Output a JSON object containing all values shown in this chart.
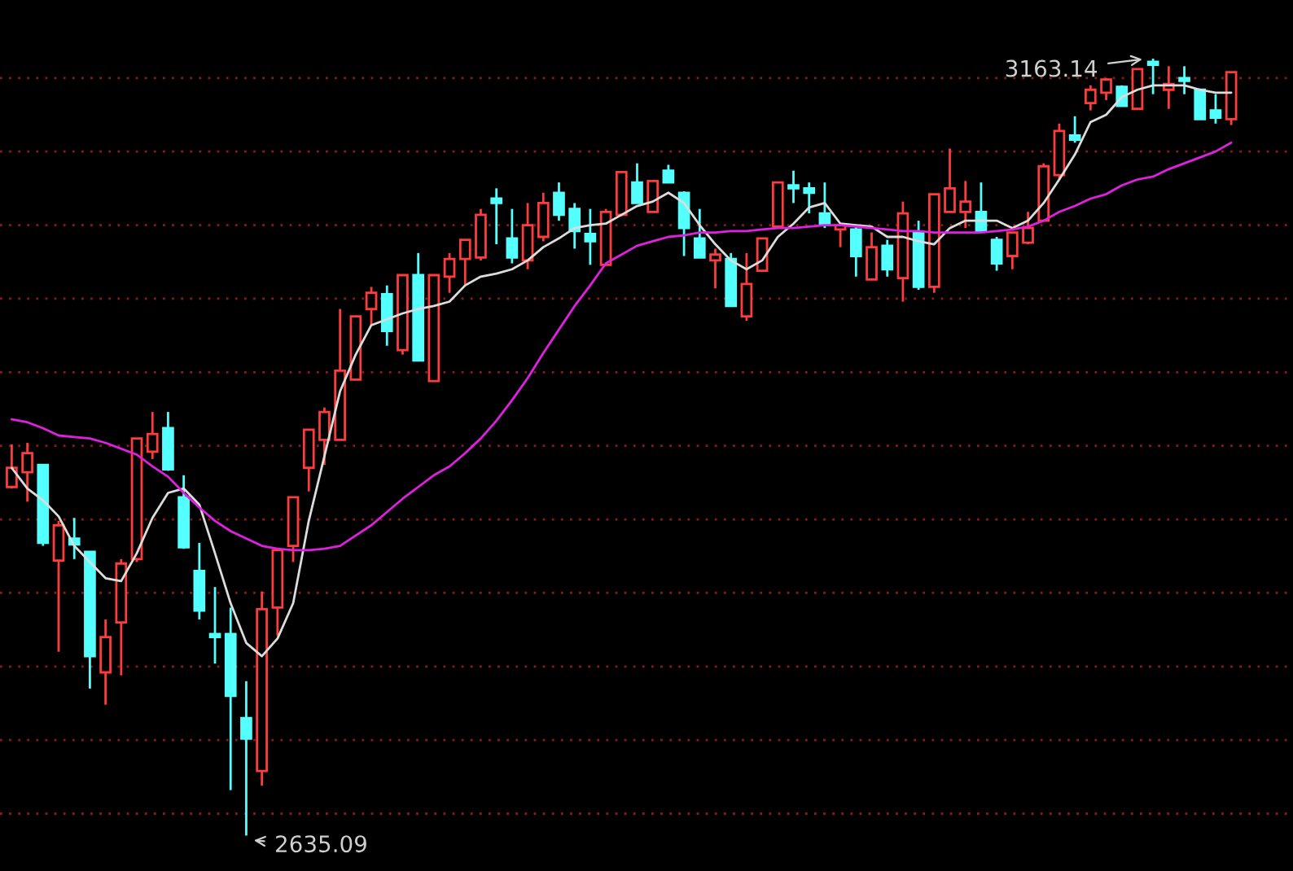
{
  "chart_data": {
    "type": "candlestick",
    "categories": [
      null,
      null,
      null,
      null,
      null,
      null,
      null,
      null,
      null,
      null,
      null,
      null,
      null,
      null,
      null,
      null,
      null,
      null,
      null,
      null,
      null,
      null,
      null,
      null,
      null,
      null,
      null,
      null,
      null,
      null,
      null,
      null,
      null,
      null,
      null,
      null,
      null,
      null,
      null,
      null,
      null,
      null,
      null,
      null,
      null,
      null,
      null,
      null,
      null,
      null,
      null,
      null,
      null,
      null,
      null,
      null,
      null,
      null,
      null,
      null,
      null,
      null,
      null,
      null,
      null,
      null,
      null,
      null,
      null,
      null,
      null,
      null,
      null,
      null,
      null,
      null,
      null,
      null,
      null
    ],
    "ohlc": [
      [
        2872,
        2901,
        2871,
        2885
      ],
      [
        2882,
        2902,
        2862,
        2895
      ],
      [
        2887,
        2887,
        2832,
        2834
      ],
      [
        2822,
        2849,
        2760,
        2846
      ],
      [
        2837,
        2851,
        2823,
        2833
      ],
      [
        2828,
        2828,
        2735,
        2757
      ],
      [
        2746,
        2782,
        2724,
        2770
      ],
      [
        2780,
        2823,
        2744,
        2820
      ],
      [
        2823,
        2905,
        2821,
        2905
      ],
      [
        2896,
        2923,
        2891,
        2908
      ],
      [
        2912,
        2923,
        2883,
        2884
      ],
      [
        2865,
        2880,
        2830,
        2831
      ],
      [
        2815,
        2834,
        2782,
        2788
      ],
      [
        2772,
        2804,
        2752,
        2770
      ],
      [
        2772,
        2790,
        2666,
        2730
      ],
      [
        2715,
        2740,
        2635.09,
        2701
      ],
      [
        2679,
        2801,
        2669,
        2789
      ],
      [
        2790,
        2829,
        2771,
        2829
      ],
      [
        2832,
        2865,
        2821,
        2865
      ],
      [
        2885,
        2911,
        2869,
        2911
      ],
      [
        2904,
        2926,
        2887,
        2923
      ],
      [
        2904,
        2993,
        2904,
        2951
      ],
      [
        2945,
        2988,
        2945,
        2988
      ],
      [
        2993,
        3008,
        2982,
        3004
      ],
      [
        3003,
        3009,
        2968,
        2978
      ],
      [
        2965,
        3016,
        2962,
        3016
      ],
      [
        3016,
        3031,
        2958,
        2958
      ],
      [
        2944,
        3016,
        2944,
        3016
      ],
      [
        3015,
        3031,
        3004,
        3027
      ],
      [
        3027,
        3040,
        3009,
        3040
      ],
      [
        3028,
        3061,
        3026,
        3057
      ],
      [
        3068,
        3075,
        3037,
        3065
      ],
      [
        3041,
        3061,
        3024,
        3028
      ],
      [
        3026,
        3065,
        3020,
        3050
      ],
      [
        3042,
        3072,
        3039,
        3065
      ],
      [
        3072,
        3079,
        3053,
        3057
      ],
      [
        3061,
        3065,
        3034,
        3046
      ],
      [
        3044,
        3061,
        3023,
        3039
      ],
      [
        3023,
        3061,
        3023,
        3059
      ],
      [
        3057,
        3086,
        3056,
        3086
      ],
      [
        3079,
        3092,
        3065,
        3065
      ],
      [
        3059,
        3080,
        3059,
        3080
      ],
      [
        3087,
        3091,
        3079,
        3079
      ],
      [
        3072,
        3073,
        3029,
        3048
      ],
      [
        3041,
        3061,
        3028,
        3028
      ],
      [
        3026,
        3034,
        3007,
        3030
      ],
      [
        3027,
        3031,
        2995,
        2995
      ],
      [
        2988,
        3031,
        2985,
        3010
      ],
      [
        3019,
        3041,
        3019,
        3041
      ],
      [
        3049,
        3079,
        3049,
        3079
      ],
      [
        3077,
        3087,
        3065,
        3075
      ],
      [
        3075,
        3079,
        3058,
        3072
      ],
      [
        3058,
        3079,
        3048,
        3050
      ],
      [
        3047,
        3050,
        3035,
        3050
      ],
      [
        3047,
        3050,
        3015,
        3029
      ],
      [
        3013,
        3045,
        3013,
        3035
      ],
      [
        3036,
        3040,
        3015,
        3020
      ],
      [
        3014,
        3066,
        2998,
        3058
      ],
      [
        3045,
        3053,
        3006,
        3008
      ],
      [
        3008,
        3071,
        3004,
        3071
      ],
      [
        3059,
        3102,
        3059,
        3075
      ],
      [
        3059,
        3080,
        3048,
        3066
      ],
      [
        3059,
        3079,
        3046,
        3046
      ],
      [
        3040,
        3042,
        3019,
        3024
      ],
      [
        3029,
        3045,
        3020,
        3045
      ],
      [
        3038,
        3059,
        3037,
        3048
      ],
      [
        3053,
        3092,
        3053,
        3090
      ],
      [
        3084,
        3119,
        3081,
        3114
      ],
      [
        3111,
        3124,
        3106,
        3108
      ],
      [
        3133,
        3145,
        3128,
        3142
      ],
      [
        3140,
        3150,
        3135,
        3149
      ],
      [
        3144,
        3145,
        3131,
        3131
      ],
      [
        3129,
        3156,
        3129,
        3156
      ],
      [
        3161,
        3163.14,
        3139,
        3159
      ],
      [
        3142,
        3158,
        3129,
        3146
      ],
      [
        3150,
        3158,
        3139,
        3148
      ],
      [
        3142,
        3142,
        3122,
        3122
      ],
      [
        3128,
        3139,
        3119,
        3123
      ],
      [
        3122,
        3154,
        3118,
        3154
      ]
    ],
    "colors": [
      "#ff3c3c",
      "#ff3c3c",
      "#54ffff",
      "#ff3c3c",
      "#54ffff",
      "#54ffff",
      "#ff3c3c",
      "#ff3c3c",
      "#ff3c3c",
      "#ff3c3c",
      "#54ffff",
      "#54ffff",
      "#54ffff",
      "#54ffff",
      "#54ffff",
      "#54ffff",
      "#ff3c3c",
      "#ff3c3c",
      "#ff3c3c",
      "#ff3c3c",
      "#ff3c3c",
      "#ff3c3c",
      "#ff3c3c",
      "#ff3c3c",
      "#54ffff",
      "#ff3c3c",
      "#54ffff",
      "#ff3c3c",
      "#ff3c3c",
      "#ff3c3c",
      "#ff3c3c",
      "#54ffff",
      "#54ffff",
      "#ff3c3c",
      "#ff3c3c",
      "#54ffff",
      "#54ffff",
      "#54ffff",
      "#ff3c3c",
      "#ff3c3c",
      "#54ffff",
      "#ff3c3c",
      "#54ffff",
      "#54ffff",
      "#54ffff",
      "#ff3c3c",
      "#54ffff",
      "#ff3c3c",
      "#ff3c3c",
      "#ff3c3c",
      "#54ffff",
      "#54ffff",
      "#54ffff",
      "#ff3c3c",
      "#54ffff",
      "#ff3c3c",
      "#54ffff",
      "#ff3c3c",
      "#54ffff",
      "#ff3c3c",
      "#ff3c3c",
      "#ff3c3c",
      "#54ffff",
      "#54ffff",
      "#ff3c3c",
      "#ff3c3c",
      "#ff3c3c",
      "#ff3c3c",
      "#54ffff",
      "#ff3c3c",
      "#ff3c3c",
      "#54ffff",
      "#ff3c3c",
      "#54ffff",
      "#ff3c3c",
      "#54ffff",
      "#54ffff",
      "#54ffff",
      "#ff3c3c"
    ],
    "series": [
      {
        "type": "line",
        "color": "#dcdcdc",
        "values": [
          2885,
          2871,
          2863,
          2852,
          2832,
          2821,
          2810,
          2808,
          2827,
          2851,
          2868,
          2871,
          2860,
          2827,
          2793,
          2766,
          2757,
          2769,
          2793,
          2849,
          2893,
          2937,
          2962,
          2982,
          2986,
          2990,
          2993,
          2995,
          2998,
          3009,
          3015,
          3017,
          3020,
          3026,
          3035,
          3041,
          3048,
          3050,
          3051,
          3057,
          3063,
          3066,
          3072,
          3065,
          3050,
          3037,
          3026,
          3020,
          3026,
          3042,
          3051,
          3062,
          3065,
          3051,
          3050,
          3049,
          3042,
          3042,
          3039,
          3037,
          3048,
          3053,
          3053,
          3053,
          3048,
          3053,
          3065,
          3081,
          3098,
          3120,
          3125,
          3137,
          3142,
          3145,
          3145,
          3145,
          3142,
          3140,
          3140
        ]
      },
      {
        "type": "line",
        "color": "#e020e0",
        "values": [
          2918,
          2916,
          2912,
          2907,
          2906,
          2905,
          2902,
          2898,
          2894,
          2886,
          2879,
          2868,
          2858,
          2849,
          2842,
          2837,
          2832,
          2830,
          2829,
          2829,
          2830,
          2832,
          2839,
          2846,
          2855,
          2864,
          2872,
          2880,
          2886,
          2895,
          2905,
          2917,
          2931,
          2946,
          2963,
          2979,
          2995,
          3009,
          3024,
          3030,
          3036,
          3039,
          3042,
          3043,
          3045,
          3045,
          3046,
          3046,
          3047,
          3048,
          3048,
          3049,
          3050,
          3050,
          3049,
          3048,
          3047,
          3046,
          3046,
          3045,
          3045,
          3045,
          3045,
          3046,
          3047,
          3049,
          3053,
          3059,
          3063,
          3068,
          3071,
          3077,
          3081,
          3083,
          3088,
          3092,
          3096,
          3100,
          3106
        ]
      }
    ],
    "ylim": [
      2611,
      3203
    ],
    "yticks": [
      {
        "value": 2650,
        "label": null
      },
      {
        "value": 2700,
        "label": null
      },
      {
        "value": 2750,
        "label": null
      },
      {
        "value": 2800,
        "label": null
      },
      {
        "value": 2850,
        "label": null
      },
      {
        "value": 2900,
        "label": null
      },
      {
        "value": 2950,
        "label": null
      },
      {
        "value": 3000,
        "label": null
      },
      {
        "value": 3050,
        "label": null
      },
      {
        "value": 3100,
        "label": null
      },
      {
        "value": 3150,
        "label": null
      }
    ],
    "grid": "y",
    "annotations": [
      "3163.14",
      "2635.09"
    ]
  }
}
